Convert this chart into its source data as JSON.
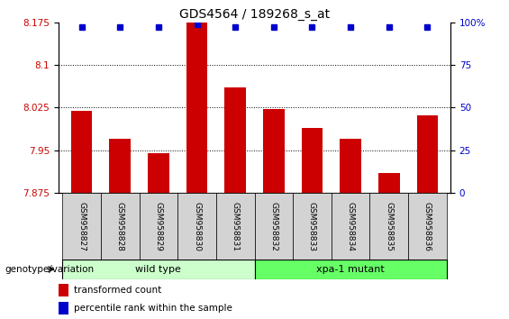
{
  "title": "GDS4564 / 189268_s_at",
  "samples": [
    "GSM958827",
    "GSM958828",
    "GSM958829",
    "GSM958830",
    "GSM958831",
    "GSM958832",
    "GSM958833",
    "GSM958834",
    "GSM958835",
    "GSM958836"
  ],
  "bar_values": [
    8.02,
    7.97,
    7.945,
    8.175,
    8.06,
    8.022,
    7.99,
    7.97,
    7.91,
    8.012
  ],
  "percentile_values": [
    97,
    97,
    97,
    99,
    97,
    97,
    97,
    97,
    97,
    97
  ],
  "ylim_left": [
    7.875,
    8.175
  ],
  "ylim_right": [
    0,
    100
  ],
  "yticks_left": [
    7.875,
    7.95,
    8.025,
    8.1,
    8.175
  ],
  "yticks_right": [
    0,
    25,
    50,
    75,
    100
  ],
  "bar_color": "#cc0000",
  "dot_color": "#0000cc",
  "wild_type_label": "wild type",
  "mutant_label": "xpa-1 mutant",
  "legend_bar_label": "transformed count",
  "legend_dot_label": "percentile rank within the sample",
  "genotype_label": "genotype/variation",
  "wt_color": "#ccffcc",
  "mutant_color": "#66ff66",
  "tick_label_color_left": "#cc0000",
  "tick_label_color_right": "#0000cc",
  "xlabel_fontsize": 6.5,
  "title_fontsize": 10,
  "ytick_fontsize": 7.5,
  "legend_fontsize": 7.5,
  "genotype_fontsize": 7.5,
  "label_box_color": "#d3d3d3"
}
